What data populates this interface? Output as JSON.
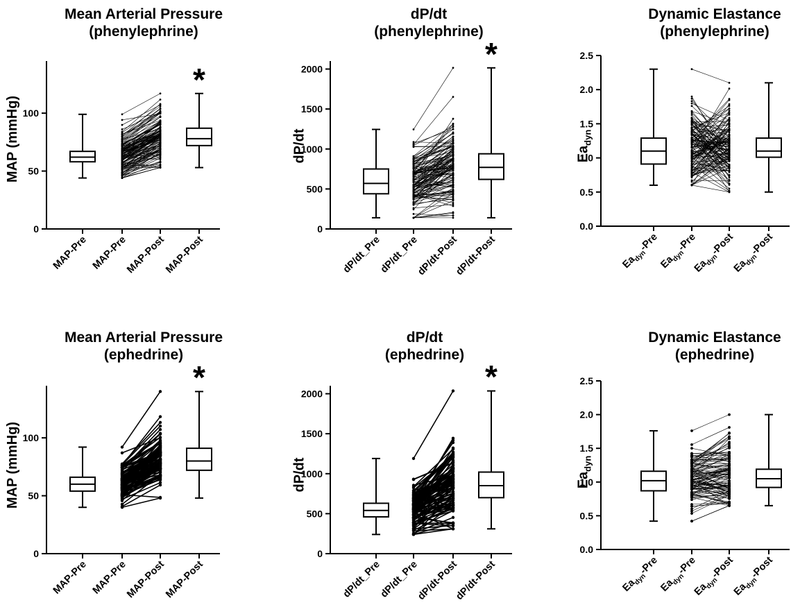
{
  "chart_data": [
    {
      "id": "map-phenylephrine",
      "type": "box-and-paired-lines",
      "title": [
        "Mean Arterial Pressure",
        "(phenylephrine)"
      ],
      "ylabel": "MAP (mmHg)",
      "ylabel_sub": "",
      "ylim": [
        0,
        145
      ],
      "yticks": [
        0,
        50,
        100
      ],
      "ytick_labels": [
        "0",
        "50",
        "100"
      ],
      "categories": [
        {
          "main": "MAP-Pre",
          "sub": "",
          "suffix": ""
        },
        {
          "main": "MAP-Pre",
          "sub": "",
          "suffix": ""
        },
        {
          "main": "MAP-Post",
          "sub": "",
          "suffix": ""
        },
        {
          "main": "MAP-Post",
          "sub": "",
          "suffix": ""
        }
      ],
      "boxes": [
        {
          "category": 0,
          "min": 44,
          "q1": 58,
          "median": 62,
          "q3": 67,
          "max": 99
        },
        {
          "category": 3,
          "min": 53,
          "q1": 72,
          "median": 78,
          "q3": 87,
          "max": 117
        }
      ],
      "paired": {
        "from": 1,
        "to": 2,
        "pre_range": [
          44,
          99
        ],
        "post_range": [
          53,
          117
        ],
        "n": 140,
        "line_width": 0.6,
        "point_r": 1.4,
        "seed": 7,
        "shift": 16,
        "spread": 7,
        "pre_center": 63
      },
      "significance": "*",
      "significance_category": 3
    },
    {
      "id": "dpdt-phenylephrine",
      "type": "box-and-paired-lines",
      "title": [
        "dP/dt",
        "(phenylephrine)"
      ],
      "ylabel": "dP/dt",
      "ylabel_sub": "",
      "ylim": [
        0,
        2100
      ],
      "yticks": [
        0,
        500,
        1000,
        1500,
        2000
      ],
      "ytick_labels": [
        "0",
        "500",
        "1000",
        "1500",
        "2000"
      ],
      "categories": [
        {
          "main": "dP/dt_Pre",
          "sub": "",
          "suffix": ""
        },
        {
          "main": "dP/dt_Pre",
          "sub": "",
          "suffix": ""
        },
        {
          "main": "dP/dt-Post",
          "sub": "",
          "suffix": ""
        },
        {
          "main": "dP/dt-Post",
          "sub": "",
          "suffix": ""
        }
      ],
      "boxes": [
        {
          "category": 0,
          "min": 140,
          "q1": 440,
          "median": 570,
          "q3": 750,
          "max": 1245
        },
        {
          "category": 3,
          "min": 140,
          "q1": 620,
          "median": 770,
          "q3": 940,
          "max": 2015
        }
      ],
      "paired": {
        "from": 1,
        "to": 2,
        "pre_range": [
          140,
          1245
        ],
        "post_range": [
          140,
          2015
        ],
        "n": 140,
        "line_width": 0.6,
        "point_r": 1.4,
        "seed": 11,
        "shift": 200,
        "spread": 200,
        "pre_center": 590
      },
      "significance": "*",
      "significance_category": 3
    },
    {
      "id": "eadyn-phenylephrine",
      "type": "box-and-paired-lines",
      "title": [
        "Dynamic Elastance",
        "(phenylephrine)"
      ],
      "ylabel": "Ea",
      "ylabel_sub": "dyn",
      "ylim": [
        0,
        2.5
      ],
      "yticks": [
        0,
        0.5,
        1.0,
        1.5,
        2.0,
        2.5
      ],
      "ytick_labels": [
        "0.0",
        "0.5",
        "1.0",
        "1.5",
        "2.0",
        "2.5"
      ],
      "categories": [
        {
          "main": "Ea",
          "sub": "dyn",
          "suffix": "-Pre"
        },
        {
          "main": "Ea",
          "sub": "dyn",
          "suffix": "-Pre"
        },
        {
          "main": "Ea",
          "sub": "dyn",
          "suffix": "-Post"
        },
        {
          "main": "Ea",
          "sub": "dyn",
          "suffix": "-Post"
        }
      ],
      "boxes": [
        {
          "category": 0,
          "min": 0.6,
          "q1": 0.91,
          "median": 1.1,
          "q3": 1.29,
          "max": 2.3
        },
        {
          "category": 3,
          "min": 0.5,
          "q1": 1.01,
          "median": 1.1,
          "q3": 1.29,
          "max": 2.1
        }
      ],
      "paired": {
        "from": 1,
        "to": 2,
        "pre_range": [
          0.6,
          2.3
        ],
        "post_range": [
          0.5,
          2.1
        ],
        "n": 140,
        "line_width": 0.6,
        "point_r": 1.4,
        "seed": 23,
        "shift": 0,
        "spread": 0.32,
        "pre_center": 1.12,
        "shuffle": true
      },
      "significance": "",
      "significance_category": 3
    },
    {
      "id": "map-ephedrine",
      "type": "box-and-paired-lines",
      "title": [
        "Mean Arterial Pressure",
        "(ephedrine)"
      ],
      "ylabel": "MAP (mmHg)",
      "ylabel_sub": "",
      "ylim": [
        0,
        145
      ],
      "yticks": [
        0,
        50,
        100
      ],
      "ytick_labels": [
        "0",
        "50",
        "100"
      ],
      "categories": [
        {
          "main": "MAP-Pre",
          "sub": "",
          "suffix": ""
        },
        {
          "main": "MAP-Pre",
          "sub": "",
          "suffix": ""
        },
        {
          "main": "MAP-Post",
          "sub": "",
          "suffix": ""
        },
        {
          "main": "MAP-Post",
          "sub": "",
          "suffix": ""
        }
      ],
      "boxes": [
        {
          "category": 0,
          "min": 40,
          "q1": 54,
          "median": 60,
          "q3": 66,
          "max": 92
        },
        {
          "category": 3,
          "min": 48,
          "q1": 72,
          "median": 80,
          "q3": 91,
          "max": 140
        }
      ],
      "paired": {
        "from": 1,
        "to": 2,
        "pre_range": [
          40,
          92
        ],
        "post_range": [
          48,
          140
        ],
        "n": 110,
        "line_width": 1.6,
        "point_r": 2.2,
        "seed": 31,
        "shift": 20,
        "spread": 9,
        "pre_center": 61
      },
      "significance": "*",
      "significance_category": 3
    },
    {
      "id": "dpdt-ephedrine",
      "type": "box-and-paired-lines",
      "title": [
        "dP/dt",
        "(ephedrine)"
      ],
      "ylabel": "dP/dt",
      "ylabel_sub": "",
      "ylim": [
        0,
        2100
      ],
      "yticks": [
        0,
        500,
        1000,
        1500,
        2000
      ],
      "ytick_labels": [
        "0",
        "500",
        "1000",
        "1500",
        "2000"
      ],
      "categories": [
        {
          "main": "dP/dt_Pre",
          "sub": "",
          "suffix": ""
        },
        {
          "main": "dP/dt_Pre",
          "sub": "",
          "suffix": ""
        },
        {
          "main": "dP/dt-Post",
          "sub": "",
          "suffix": ""
        },
        {
          "main": "dP/dt-Post",
          "sub": "",
          "suffix": ""
        }
      ],
      "boxes": [
        {
          "category": 0,
          "min": 240,
          "q1": 460,
          "median": 540,
          "q3": 630,
          "max": 1190
        },
        {
          "category": 3,
          "min": 310,
          "q1": 700,
          "median": 850,
          "q3": 1020,
          "max": 2035
        }
      ],
      "paired": {
        "from": 1,
        "to": 2,
        "pre_range": [
          240,
          1190
        ],
        "post_range": [
          310,
          2035
        ],
        "n": 110,
        "line_width": 1.6,
        "point_r": 2.2,
        "seed": 43,
        "shift": 330,
        "spread": 220,
        "pre_center": 560
      },
      "significance": "*",
      "significance_category": 3
    },
    {
      "id": "eadyn-ephedrine",
      "type": "box-and-paired-lines",
      "title": [
        "Dynamic Elastance",
        "(ephedrine)"
      ],
      "ylabel": "Ea",
      "ylabel_sub": "dyn",
      "ylim": [
        0,
        2.5
      ],
      "yticks": [
        0,
        0.5,
        1.0,
        1.5,
        2.0,
        2.5
      ],
      "ytick_labels": [
        "0.0",
        "0.5",
        "1.0",
        "1.5",
        "2.0",
        "2.5"
      ],
      "categories": [
        {
          "main": "Ea",
          "sub": "dyn",
          "suffix": "-Pre"
        },
        {
          "main": "Ea",
          "sub": "dyn",
          "suffix": "-Pre"
        },
        {
          "main": "Ea",
          "sub": "dyn",
          "suffix": "-Post"
        },
        {
          "main": "Ea",
          "sub": "dyn",
          "suffix": "-Post"
        }
      ],
      "boxes": [
        {
          "category": 0,
          "min": 0.42,
          "q1": 0.87,
          "median": 1.02,
          "q3": 1.16,
          "max": 1.76
        },
        {
          "category": 3,
          "min": 0.65,
          "q1": 0.92,
          "median": 1.05,
          "q3": 1.19,
          "max": 2.0
        }
      ],
      "paired": {
        "from": 1,
        "to": 2,
        "pre_range": [
          0.42,
          1.76
        ],
        "post_range": [
          0.65,
          2.0
        ],
        "n": 110,
        "line_width": 0.6,
        "point_r": 1.9,
        "seed": 57,
        "shift": 0.03,
        "spread": 0.18,
        "pre_center": 1.02
      },
      "significance": "",
      "significance_category": 3
    }
  ]
}
